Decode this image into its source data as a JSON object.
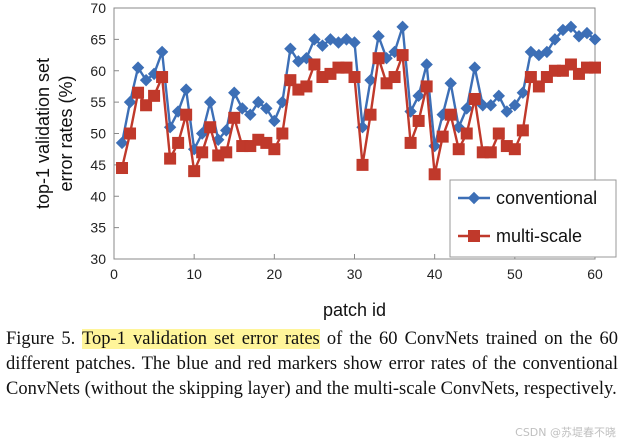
{
  "chart_data": {
    "type": "line",
    "xlabel": "patch id",
    "ylabel_lines": [
      "top-1 validation set",
      "error rates (%)"
    ],
    "xlim": [
      0,
      60
    ],
    "ylim": [
      30,
      70
    ],
    "xticks": [
      0,
      10,
      20,
      30,
      40,
      50,
      60
    ],
    "yticks": [
      30,
      35,
      40,
      45,
      50,
      55,
      60,
      65,
      70
    ],
    "grid": false,
    "legend": "bottom-right",
    "x": [
      1,
      2,
      3,
      4,
      5,
      6,
      7,
      8,
      9,
      10,
      11,
      12,
      13,
      14,
      15,
      16,
      17,
      18,
      19,
      20,
      21,
      22,
      23,
      24,
      25,
      26,
      27,
      28,
      29,
      30,
      31,
      32,
      33,
      34,
      35,
      36,
      37,
      38,
      39,
      40,
      41,
      42,
      43,
      44,
      45,
      46,
      47,
      48,
      49,
      50,
      51,
      52,
      53,
      54,
      55,
      56,
      57,
      58,
      59,
      60
    ],
    "series": [
      {
        "name": "conventional",
        "color": "#3d6fb6",
        "marker": "diamond",
        "values": [
          48.5,
          55.0,
          60.5,
          58.5,
          59.5,
          63.0,
          51.0,
          53.5,
          57.0,
          47.5,
          50.0,
          55.0,
          49.0,
          50.5,
          56.5,
          54.0,
          53.0,
          55.0,
          54.0,
          52.0,
          55.0,
          63.5,
          61.5,
          62.0,
          65.0,
          64.0,
          65.0,
          64.5,
          65.0,
          64.5,
          51.0,
          58.5,
          65.5,
          62.0,
          63.0,
          67.0,
          53.5,
          56.0,
          61.0,
          48.0,
          53.0,
          58.0,
          51.0,
          54.0,
          60.5,
          54.5,
          54.5,
          56.0,
          53.5,
          54.5,
          56.5,
          63.0,
          62.5,
          63.0,
          65.0,
          66.5,
          67.0,
          65.5,
          66.0,
          65.0
        ]
      },
      {
        "name": "multi-scale",
        "color": "#c0392b",
        "marker": "square",
        "values": [
          44.5,
          50.0,
          56.5,
          54.5,
          56.0,
          59.0,
          46.0,
          48.5,
          53.0,
          44.0,
          47.0,
          51.0,
          46.5,
          47.0,
          52.5,
          48.0,
          48.0,
          49.0,
          48.5,
          47.5,
          50.0,
          58.5,
          57.0,
          57.5,
          61.0,
          59.0,
          59.5,
          60.5,
          60.5,
          59.0,
          45.0,
          53.0,
          62.0,
          58.0,
          59.0,
          62.5,
          48.5,
          52.0,
          57.5,
          43.5,
          49.5,
          53.0,
          47.5,
          50.0,
          55.5,
          47.0,
          47.0,
          50.0,
          48.0,
          47.5,
          50.5,
          59.0,
          57.5,
          59.0,
          60.0,
          60.0,
          61.0,
          59.5,
          60.5,
          60.5
        ]
      }
    ]
  },
  "caption": {
    "prefix": "Figure 5. ",
    "highlight": "Top-1 validation set error rates",
    "rest": " of the 60 ConvNets trained on the 60 different patches. The blue and red markers show error rates of the conventional ConvNets (without the skipping layer) and the multi-scale ConvNets, respectively."
  },
  "watermark": "CSDN @苏堤春不晓"
}
